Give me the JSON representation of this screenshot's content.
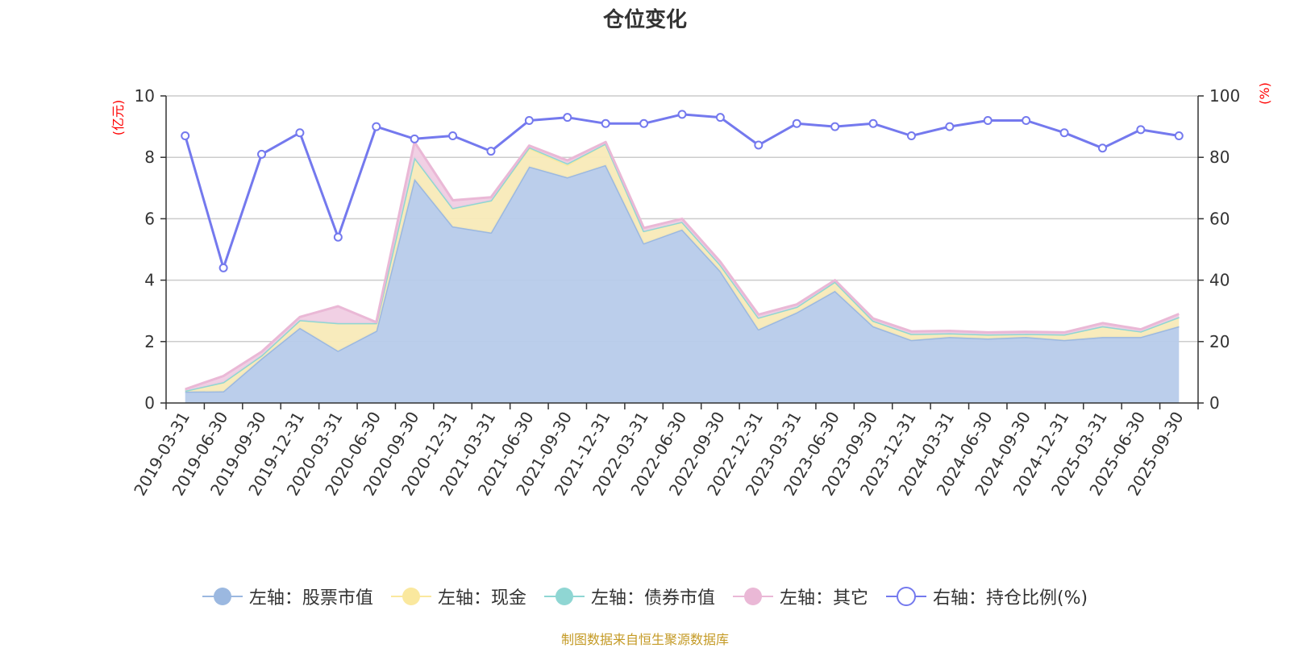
{
  "chart_data": {
    "type": "area",
    "title": "仓位变化",
    "source": "制图数据来自恒生聚源数据库",
    "left_axis": {
      "unit": "(亿元)",
      "ylim": [
        0,
        10
      ],
      "ticks": [
        0,
        2,
        4,
        6,
        8,
        10
      ]
    },
    "right_axis": {
      "unit": "(%)",
      "ylim": [
        0,
        100
      ],
      "ticks": [
        0,
        20,
        40,
        60,
        80,
        100
      ]
    },
    "categories": [
      "2019-03-31",
      "2019-06-30",
      "2019-09-30",
      "2019-12-31",
      "2020-03-31",
      "2020-06-30",
      "2020-09-30",
      "2020-12-31",
      "2021-03-31",
      "2021-06-30",
      "2021-09-30",
      "2021-12-31",
      "2022-03-31",
      "2022-06-30",
      "2022-09-30",
      "2022-12-31",
      "2023-03-31",
      "2023-06-30",
      "2023-09-30",
      "2023-12-31",
      "2024-03-31",
      "2024-06-30",
      "2024-09-30",
      "2024-12-31",
      "2025-03-31",
      "2025-06-30",
      "2025-09-30"
    ],
    "series": [
      {
        "name": "左轴：股票市值",
        "axis": "left",
        "color": "#9bb8e0",
        "fill": "#b7cbea",
        "values": [
          0.37,
          0.38,
          1.45,
          2.45,
          1.7,
          2.35,
          7.3,
          5.75,
          5.55,
          7.7,
          7.35,
          7.75,
          5.2,
          5.65,
          4.3,
          2.4,
          2.95,
          3.65,
          2.5,
          2.05,
          2.15,
          2.1,
          2.15,
          2.05,
          2.15,
          2.15,
          2.5
        ]
      },
      {
        "name": "左轴：现金",
        "axis": "left",
        "color": "#fae89e",
        "fill": "#f8eab8",
        "values": [
          0.03,
          0.3,
          0.1,
          0.25,
          0.9,
          0.25,
          0.7,
          0.6,
          1.05,
          0.6,
          0.4,
          0.7,
          0.4,
          0.25,
          0.2,
          0.38,
          0.18,
          0.3,
          0.18,
          0.2,
          0.12,
          0.13,
          0.1,
          0.18,
          0.35,
          0.18,
          0.3
        ]
      },
      {
        "name": "左轴：债券市值",
        "axis": "left",
        "color": "#8fd6d3",
        "fill": "#cfeeed",
        "values": [
          0,
          0,
          0,
          0,
          0,
          0,
          0,
          0,
          0,
          0.03,
          0.05,
          0,
          0,
          0,
          0,
          0,
          0,
          0,
          0,
          0,
          0,
          0,
          0,
          0,
          0,
          0,
          0
        ]
      },
      {
        "name": "左轴：其它",
        "axis": "left",
        "color": "#eab8d6",
        "fill": "#f0cde3",
        "values": [
          0.05,
          0.2,
          0.12,
          0.1,
          0.55,
          0.03,
          0.5,
          0.25,
          0.1,
          0.05,
          0.1,
          0.05,
          0.1,
          0.1,
          0.1,
          0.1,
          0.08,
          0.05,
          0.07,
          0.08,
          0.08,
          0.07,
          0.07,
          0.07,
          0.1,
          0.07,
          0.1
        ]
      },
      {
        "name": "右轴：持仓比例(%)",
        "axis": "right",
        "color": "#7479ee",
        "values": [
          87,
          44,
          81,
          88,
          54,
          90,
          86,
          87,
          82,
          92,
          93,
          91,
          91,
          94,
          93,
          84,
          91,
          90,
          91,
          87,
          90,
          92,
          92,
          88,
          83,
          89,
          87
        ]
      }
    ]
  }
}
